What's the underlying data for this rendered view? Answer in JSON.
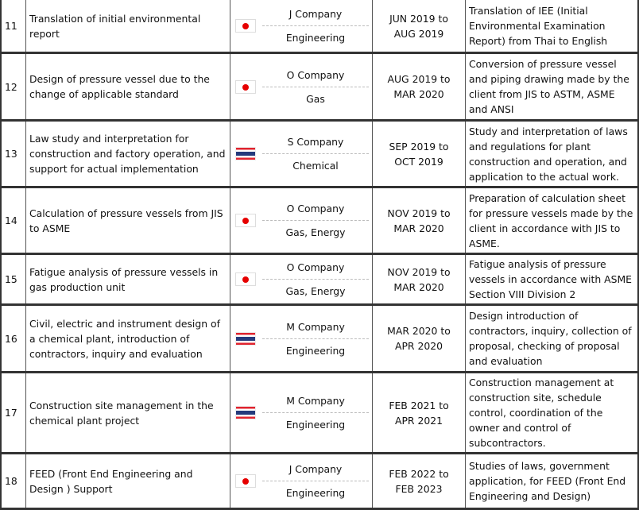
{
  "rows": [
    {
      "no": "11",
      "project": "Translation of initial environmental report",
      "country": "japan",
      "company": "J Company",
      "industry": "Engineering",
      "period": [
        "JUN 2019 to",
        "AUG 2019"
      ],
      "description": "Translation of IEE (Initial Environmental Examination Report) from Thai to English"
    },
    {
      "no": "12",
      "project": "Design of pressure vessel due to the change of applicable standard",
      "country": "japan",
      "company": "O Company",
      "industry": "Gas",
      "period": [
        "AUG 2019 to",
        "MAR 2020"
      ],
      "description": "Conversion of pressure vessel and piping drawing made by the client from JIS to ASTM, ASME and ANSI"
    },
    {
      "no": "13",
      "project": "Law study and interpretation for construction and factory operation, and support for actual implementation",
      "country": "thailand",
      "company": "S Company",
      "industry": "Chemical",
      "period": [
        "SEP 2019 to",
        "OCT 2019"
      ],
      "description": "Study and interpretation of laws and regulations for plant construction and operation, and application to the actual work."
    },
    {
      "no": "14",
      "project": "Calculation of pressure vessels from JIS to ASME",
      "country": "japan",
      "company": "O Company",
      "industry": "Gas, Energy",
      "period": [
        "NOV 2019 to",
        "MAR 2020"
      ],
      "description": "Preparation of calculation sheet for pressure vessels made by the client in accordance with JIS to ASME."
    },
    {
      "no": "15",
      "project": "Fatigue analysis of pressure vessels in gas production unit",
      "country": "japan",
      "company": "O Company",
      "industry": "Gas, Energy",
      "period": [
        "NOV 2019 to",
        "MAR 2020"
      ],
      "description": "Fatigue analysis of pressure vessels in accordance with ASME Section VIII Division 2"
    },
    {
      "no": "16",
      "project": "Civil, electric and instrument design of a chemical plant, introduction of contractors, inquiry and evaluation",
      "country": "thailand",
      "company": "M Company",
      "industry": "Engineering",
      "period": [
        "MAR 2020 to",
        "APR 2020"
      ],
      "description": "Design introduction of contractors, inquiry, collection of proposal, checking of proposal and evaluation"
    },
    {
      "no": "17",
      "project": "Construction site management in the chemical plant project",
      "country": "thailand",
      "company": "M Company",
      "industry": "Engineering",
      "period": [
        "FEB 2021 to",
        "APR 2021"
      ],
      "description": "Construction management at construction site, schedule control, coordination of the owner and control of subcontractors."
    },
    {
      "no": "18",
      "project": "FEED (Front End Engineering and Design ) Support",
      "country": "japan",
      "company": "J Company",
      "industry": "Engineering",
      "period": [
        "FEB 2022 to",
        "FEB 2023"
      ],
      "description": "Studies of laws, government application, for FEED (Front End Engineering and Design)"
    }
  ]
}
